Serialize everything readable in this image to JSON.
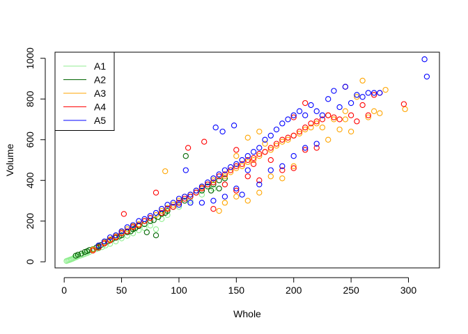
{
  "chart_data": {
    "type": "scatter",
    "title": "",
    "xlabel": "Whole",
    "ylabel": "Volume",
    "xlim": [
      0,
      320
    ],
    "ylim": [
      0,
      1000
    ],
    "xticks": [
      0,
      50,
      100,
      150,
      200,
      250,
      300
    ],
    "yticks": [
      0,
      200,
      400,
      600,
      800,
      1000
    ],
    "marker": "open-circle",
    "legend": {
      "position": "top-left",
      "entries": [
        {
          "name": "A1",
          "color": "#90EE90"
        },
        {
          "name": "A2",
          "color": "#006400"
        },
        {
          "name": "A3",
          "color": "#FFA500"
        },
        {
          "name": "A4",
          "color": "#FF0000"
        },
        {
          "name": "A5",
          "color": "#0000FF"
        }
      ]
    },
    "series": [
      {
        "name": "A1",
        "color": "#90EE90",
        "points": [
          [
            2,
            4
          ],
          [
            3,
            6
          ],
          [
            4,
            8
          ],
          [
            5,
            10
          ],
          [
            6,
            12
          ],
          [
            7,
            14
          ],
          [
            8,
            17
          ],
          [
            9,
            20
          ],
          [
            10,
            22
          ],
          [
            11,
            24
          ],
          [
            12,
            27
          ],
          [
            14,
            30
          ],
          [
            16,
            34
          ],
          [
            18,
            38
          ],
          [
            20,
            42
          ],
          [
            22,
            48
          ],
          [
            25,
            55
          ],
          [
            28,
            62
          ],
          [
            30,
            66
          ],
          [
            33,
            72
          ],
          [
            36,
            80
          ],
          [
            40,
            88
          ],
          [
            45,
            100
          ],
          [
            50,
            115
          ],
          [
            55,
            128
          ],
          [
            60,
            140
          ],
          [
            65,
            155
          ],
          [
            70,
            165
          ],
          [
            75,
            178
          ],
          [
            80,
            160
          ],
          [
            85,
            210
          ],
          [
            90,
            230
          ],
          [
            100,
            270
          ],
          [
            110,
            300
          ],
          [
            120,
            330
          ],
          [
            130,
            360
          ],
          [
            140,
            380
          ]
        ]
      },
      {
        "name": "A2",
        "color": "#006400",
        "points": [
          [
            10,
            30
          ],
          [
            12,
            35
          ],
          [
            15,
            40
          ],
          [
            18,
            48
          ],
          [
            20,
            52
          ],
          [
            22,
            58
          ],
          [
            25,
            62
          ],
          [
            28,
            70
          ],
          [
            30,
            75
          ],
          [
            32,
            82
          ],
          [
            35,
            90
          ],
          [
            38,
            100
          ],
          [
            40,
            105
          ],
          [
            42,
            112
          ],
          [
            45,
            118
          ],
          [
            48,
            125
          ],
          [
            50,
            130
          ],
          [
            55,
            145
          ],
          [
            58,
            150
          ],
          [
            60,
            160
          ],
          [
            62,
            165
          ],
          [
            65,
            175
          ],
          [
            70,
            185
          ],
          [
            72,
            145
          ],
          [
            75,
            200
          ],
          [
            78,
            205
          ],
          [
            80,
            130
          ],
          [
            82,
            220
          ],
          [
            85,
            235
          ],
          [
            88,
            240
          ],
          [
            90,
            250
          ],
          [
            95,
            270
          ],
          [
            100,
            290
          ],
          [
            105,
            300
          ],
          [
            110,
            320
          ],
          [
            115,
            340
          ],
          [
            120,
            350
          ],
          [
            125,
            370
          ],
          [
            130,
            380
          ],
          [
            135,
            400
          ],
          [
            140,
            410
          ],
          [
            106,
            520
          ],
          [
            128,
            350
          ],
          [
            135,
            360
          ]
        ]
      },
      {
        "name": "A3",
        "color": "#FFA500",
        "points": [
          [
            25,
            60
          ],
          [
            30,
            80
          ],
          [
            35,
            95
          ],
          [
            40,
            110
          ],
          [
            45,
            125
          ],
          [
            50,
            145
          ],
          [
            55,
            160
          ],
          [
            60,
            175
          ],
          [
            65,
            185
          ],
          [
            70,
            200
          ],
          [
            75,
            215
          ],
          [
            80,
            230
          ],
          [
            85,
            250
          ],
          [
            90,
            265
          ],
          [
            95,
            280
          ],
          [
            88,
            445
          ],
          [
            100,
            300
          ],
          [
            105,
            320
          ],
          [
            110,
            330
          ],
          [
            115,
            350
          ],
          [
            120,
            365
          ],
          [
            125,
            380
          ],
          [
            130,
            400
          ],
          [
            135,
            250
          ],
          [
            140,
            420
          ],
          [
            145,
            440
          ],
          [
            150,
            460
          ],
          [
            155,
            470
          ],
          [
            160,
            490
          ],
          [
            165,
            500
          ],
          [
            170,
            520
          ],
          [
            175,
            540
          ],
          [
            180,
            550
          ],
          [
            185,
            570
          ],
          [
            190,
            590
          ],
          [
            195,
            600
          ],
          [
            200,
            620
          ],
          [
            205,
            630
          ],
          [
            210,
            650
          ],
          [
            215,
            660
          ],
          [
            220,
            680
          ],
          [
            225,
            660
          ],
          [
            230,
            600
          ],
          [
            235,
            700
          ],
          [
            240,
            650
          ],
          [
            245,
            700
          ],
          [
            250,
            640
          ],
          [
            255,
            810
          ],
          [
            260,
            890
          ],
          [
            265,
            710
          ],
          [
            270,
            740
          ],
          [
            275,
            730
          ],
          [
            280,
            845
          ],
          [
            297,
            750
          ],
          [
            160,
            300
          ],
          [
            170,
            340
          ],
          [
            140,
            290
          ],
          [
            150,
            320
          ],
          [
            180,
            420
          ],
          [
            190,
            410
          ],
          [
            200,
            470
          ],
          [
            160,
            610
          ],
          [
            170,
            640
          ],
          [
            150,
            520
          ],
          [
            175,
            580
          ],
          [
            230,
            720
          ],
          [
            245,
            740
          ]
        ]
      },
      {
        "name": "A4",
        "color": "#FF0000",
        "points": [
          [
            25,
            55
          ],
          [
            30,
            70
          ],
          [
            35,
            90
          ],
          [
            40,
            105
          ],
          [
            45,
            120
          ],
          [
            50,
            140
          ],
          [
            52,
            235
          ],
          [
            55,
            150
          ],
          [
            60,
            170
          ],
          [
            65,
            180
          ],
          [
            70,
            200
          ],
          [
            75,
            215
          ],
          [
            80,
            340
          ],
          [
            85,
            240
          ],
          [
            90,
            260
          ],
          [
            95,
            270
          ],
          [
            100,
            290
          ],
          [
            105,
            310
          ],
          [
            108,
            560
          ],
          [
            110,
            320
          ],
          [
            115,
            340
          ],
          [
            120,
            360
          ],
          [
            122,
            590
          ],
          [
            125,
            380
          ],
          [
            130,
            390
          ],
          [
            135,
            420
          ],
          [
            140,
            430
          ],
          [
            145,
            450
          ],
          [
            150,
            470
          ],
          [
            155,
            480
          ],
          [
            160,
            500
          ],
          [
            165,
            510
          ],
          [
            170,
            530
          ],
          [
            175,
            540
          ],
          [
            180,
            560
          ],
          [
            185,
            580
          ],
          [
            190,
            600
          ],
          [
            195,
            610
          ],
          [
            200,
            620
          ],
          [
            205,
            640
          ],
          [
            210,
            660
          ],
          [
            215,
            680
          ],
          [
            220,
            690
          ],
          [
            225,
            700
          ],
          [
            230,
            720
          ],
          [
            235,
            710
          ],
          [
            240,
            700
          ],
          [
            245,
            860
          ],
          [
            250,
            720
          ],
          [
            255,
            690
          ],
          [
            260,
            770
          ],
          [
            265,
            720
          ],
          [
            270,
            820
          ],
          [
            275,
            830
          ],
          [
            296,
            775
          ],
          [
            130,
            260
          ],
          [
            150,
            350
          ],
          [
            170,
            400
          ],
          [
            190,
            450
          ],
          [
            200,
            460
          ],
          [
            210,
            550
          ],
          [
            220,
            560
          ],
          [
            180,
            500
          ],
          [
            160,
            420
          ],
          [
            140,
            380
          ],
          [
            200,
            710
          ],
          [
            210,
            780
          ],
          [
            150,
            550
          ],
          [
            165,
            480
          ]
        ]
      },
      {
        "name": "A5",
        "color": "#0000FF",
        "points": [
          [
            30,
            80
          ],
          [
            35,
            100
          ],
          [
            40,
            120
          ],
          [
            45,
            130
          ],
          [
            50,
            150
          ],
          [
            55,
            170
          ],
          [
            60,
            180
          ],
          [
            65,
            200
          ],
          [
            70,
            210
          ],
          [
            75,
            225
          ],
          [
            80,
            240
          ],
          [
            85,
            260
          ],
          [
            90,
            280
          ],
          [
            95,
            290
          ],
          [
            100,
            310
          ],
          [
            105,
            320
          ],
          [
            106,
            450
          ],
          [
            110,
            330
          ],
          [
            115,
            350
          ],
          [
            120,
            370
          ],
          [
            125,
            390
          ],
          [
            130,
            410
          ],
          [
            132,
            660
          ],
          [
            135,
            430
          ],
          [
            138,
            640
          ],
          [
            140,
            450
          ],
          [
            145,
            465
          ],
          [
            148,
            670
          ],
          [
            150,
            480
          ],
          [
            155,
            500
          ],
          [
            160,
            520
          ],
          [
            165,
            540
          ],
          [
            170,
            560
          ],
          [
            175,
            600
          ],
          [
            180,
            620
          ],
          [
            185,
            650
          ],
          [
            190,
            680
          ],
          [
            195,
            700
          ],
          [
            200,
            720
          ],
          [
            205,
            740
          ],
          [
            210,
            720
          ],
          [
            215,
            770
          ],
          [
            220,
            740
          ],
          [
            225,
            720
          ],
          [
            230,
            800
          ],
          [
            235,
            840
          ],
          [
            240,
            760
          ],
          [
            245,
            860
          ],
          [
            250,
            780
          ],
          [
            255,
            820
          ],
          [
            260,
            810
          ],
          [
            265,
            830
          ],
          [
            270,
            830
          ],
          [
            275,
            830
          ],
          [
            314,
            995
          ],
          [
            316,
            910
          ],
          [
            130,
            300
          ],
          [
            150,
            360
          ],
          [
            170,
            380
          ],
          [
            180,
            450
          ],
          [
            190,
            470
          ],
          [
            160,
            450
          ],
          [
            155,
            330
          ],
          [
            140,
            320
          ],
          [
            200,
            520
          ],
          [
            210,
            560
          ],
          [
            220,
            580
          ],
          [
            120,
            290
          ],
          [
            100,
            280
          ],
          [
            110,
            290
          ]
        ]
      }
    ]
  }
}
